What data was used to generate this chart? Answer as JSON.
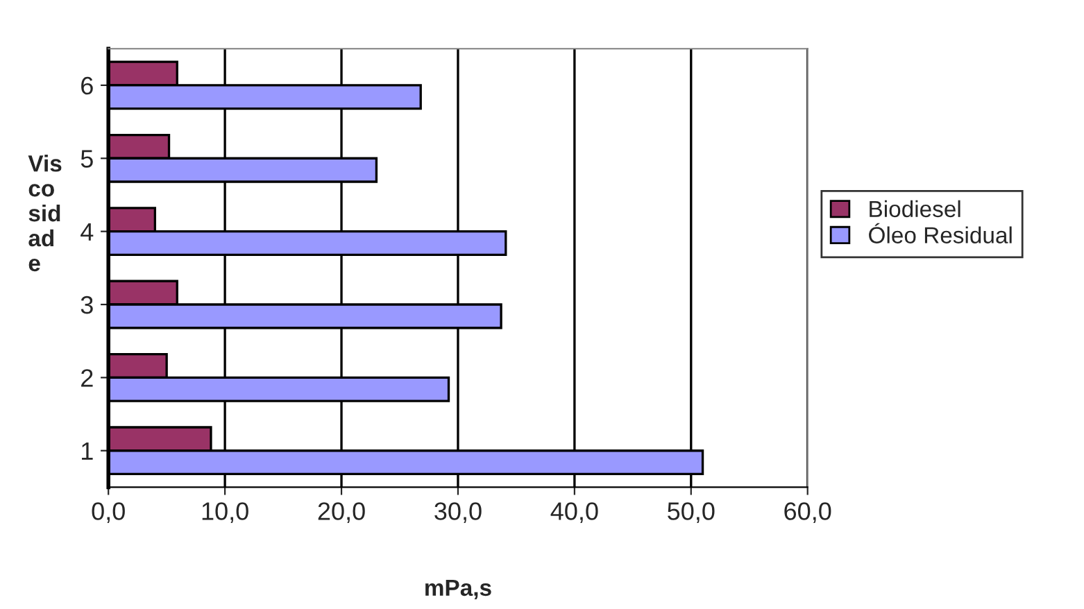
{
  "chart_data": {
    "type": "bar",
    "orientation": "horizontal",
    "xlabel": "mPa,s",
    "ylabel": "Vis\nco\nsid\nad\ne",
    "categories": [
      "6",
      "5",
      "4",
      "3",
      "2",
      "1"
    ],
    "series": [
      {
        "name": "Biodiesel",
        "color": "#993366",
        "values": [
          5.9,
          5.2,
          4.0,
          5.9,
          5.0,
          8.8
        ]
      },
      {
        "name": "Óleo Residual",
        "color": "#9999ff",
        "values": [
          26.8,
          23.0,
          34.1,
          33.7,
          29.2,
          51.0
        ]
      }
    ],
    "xlim": [
      0,
      60
    ],
    "xticks": [
      {
        "value": 0,
        "label": "0,0"
      },
      {
        "value": 10,
        "label": "10,0"
      },
      {
        "value": 20,
        "label": "20,0"
      },
      {
        "value": 30,
        "label": "30,0"
      },
      {
        "value": 40,
        "label": "40,0"
      },
      {
        "value": 50,
        "label": "50,0"
      },
      {
        "value": 60,
        "label": "60,0"
      }
    ],
    "grid": "x",
    "legend": "right"
  }
}
